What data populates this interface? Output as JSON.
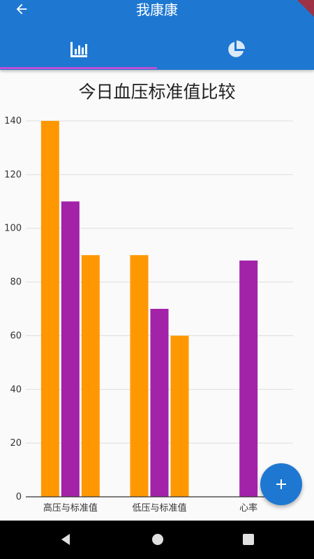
{
  "appbar": {
    "title": "我康康",
    "back_icon": "arrow-back-icon",
    "color": "#1e78d2"
  },
  "tabs": [
    {
      "icon": "bar-chart-icon",
      "selected": true
    },
    {
      "icon": "pie-chart-icon",
      "selected": false
    }
  ],
  "chart_data": {
    "type": "bar",
    "title": "今日血压标准值比较",
    "categories": [
      "高压与标准值",
      "低压与标准值",
      "心率"
    ],
    "series": [
      {
        "color": "#ff9800",
        "values": [
          140,
          90,
          null
        ]
      },
      {
        "color": "#a222a8",
        "values": [
          110,
          70,
          88
        ]
      },
      {
        "color": "#ff9800",
        "values": [
          90,
          60,
          null
        ]
      }
    ],
    "yticks": [
      "0",
      "20",
      "40",
      "60",
      "80",
      "100",
      "120",
      "140"
    ],
    "ylim": [
      0,
      140
    ],
    "grid": true,
    "legend": "none"
  },
  "fab": {
    "icon": "add-icon"
  },
  "system_nav": {
    "back": "nav-back-icon",
    "home": "nav-home-icon",
    "recent": "nav-recent-icon"
  }
}
